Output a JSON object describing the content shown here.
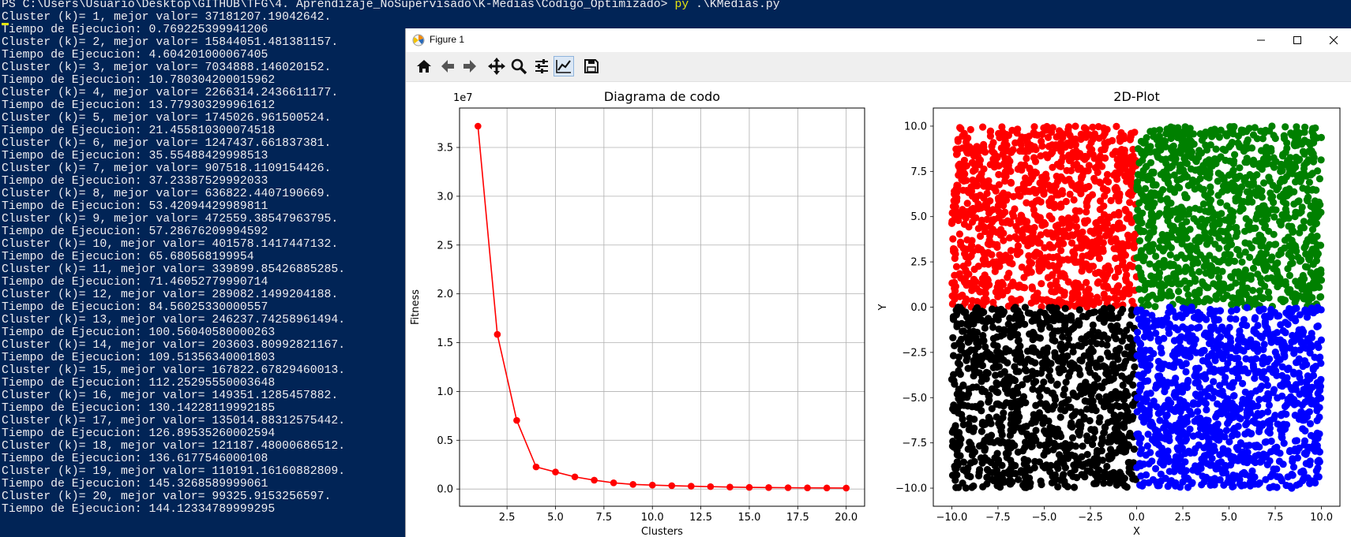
{
  "terminal": {
    "command_prefix": "PS C:\\Users\\Usuario\\Desktop\\GITHUB\\TFG\\4. Aprendizaje_NoSupervisado\\K-Medias\\Codigo_Optimizado> ",
    "command_exec": "py",
    "command_arg": " .\\KMedias.py",
    "lines": [
      "Cluster (k)= 1, mejor valor= 37181207.19042642.",
      "Tiempo de Ejecucion: 0.769225399941206",
      "Cluster (k)= 2, mejor valor= 15844051.481381157.",
      "Tiempo de Ejecucion: 4.604201000067405",
      "Cluster (k)= 3, mejor valor= 7034888.146020152.",
      "Tiempo de Ejecucion: 10.780304200015962",
      "Cluster (k)= 4, mejor valor= 2266314.2436611177.",
      "Tiempo de Ejecucion: 13.779303299961612",
      "Cluster (k)= 5, mejor valor= 1745026.961500524.",
      "Tiempo de Ejecucion: 21.455810300074518",
      "Cluster (k)= 6, mejor valor= 1247437.661837381.",
      "Tiempo de Ejecucion: 35.55488429998513",
      "Cluster (k)= 7, mejor valor= 907518.1109154426.",
      "Tiempo de Ejecucion: 37.23387529992033",
      "Cluster (k)= 8, mejor valor= 636822.4407190669.",
      "Tiempo de Ejecucion: 53.42094429989811",
      "Cluster (k)= 9, mejor valor= 472559.38547963795.",
      "Tiempo de Ejecucion: 57.28676209994592",
      "Cluster (k)= 10, mejor valor= 401578.1417447132.",
      "Tiempo de Ejecucion: 65.680568199954",
      "Cluster (k)= 11, mejor valor= 339899.85426885285.",
      "Tiempo de Ejecucion: 71.46052779990714",
      "Cluster (k)= 12, mejor valor= 289082.1499204188.",
      "Tiempo de Ejecucion: 84.56025330000557",
      "Cluster (k)= 13, mejor valor= 246237.74258961494.",
      "Tiempo de Ejecucion: 100.56040580000263",
      "Cluster (k)= 14, mejor valor= 203603.80992821167.",
      "Tiempo de Ejecucion: 109.51356340001803",
      "Cluster (k)= 15, mejor valor= 167822.67829460013.",
      "Tiempo de Ejecucion: 112.25295550003648",
      "Cluster (k)= 16, mejor valor= 149351.1285457882.",
      "Tiempo de Ejecucion: 130.14228119992185",
      "Cluster (k)= 17, mejor valor= 135014.88312575442.",
      "Tiempo de Ejecucion: 126.89535260002594",
      "Cluster (k)= 18, mejor valor= 121187.48000686512.",
      "Tiempo de Ejecucion: 136.6177546000108",
      "Cluster (k)= 19, mejor valor= 110191.16160882809.",
      "Tiempo de Ejecucion: 145.3268589999061",
      "Cluster (k)= 20, mejor valor= 99325.9153256597.",
      "Tiempo de Ejecucion: 144.12334789999295"
    ]
  },
  "window": {
    "title": "Figure 1"
  },
  "toolbar": {
    "buttons": [
      "home-icon",
      "back-arrow-icon",
      "forward-arrow-icon",
      "pan-icon",
      "zoom-icon",
      "subplots-config-icon",
      "edit-axis-icon",
      "save-icon"
    ],
    "active": "edit-axis-icon"
  },
  "colors": {
    "terminal_bg": "#012456",
    "terminal_text": "#eeedf0",
    "command_highlight": "#e5e510",
    "elbow_line": "#ff0000",
    "cluster_colors": [
      "#ff0000",
      "#008000",
      "#000000",
      "#0000ff"
    ]
  },
  "chart_data": [
    {
      "type": "line",
      "title": "Diagrama de codo",
      "xlabel": "Clusters",
      "ylabel": "Fitness",
      "scale_label": "1e7",
      "x": [
        1,
        2,
        3,
        4,
        5,
        6,
        7,
        8,
        9,
        10,
        11,
        12,
        13,
        14,
        15,
        16,
        17,
        18,
        19,
        20
      ],
      "y": [
        37181207.19042642,
        15844051.481381157,
        7034888.146020152,
        2266314.2436611177,
        1745026.961500524,
        1247437.661837381,
        907518.1109154426,
        636822.4407190669,
        472559.38547963795,
        401578.1417447132,
        339899.85426885285,
        289082.1499204188,
        246237.74258961494,
        203603.80992821167,
        167822.67829460013,
        149351.1285457882,
        135014.88312575442,
        121187.48000686512,
        110191.16160882809,
        99325.9153256597
      ],
      "xlim": [
        0.05,
        20.95
      ],
      "ylim": [
        -1763000,
        39040000
      ],
      "xticks": [
        2.5,
        5.0,
        7.5,
        10.0,
        12.5,
        15.0,
        17.5,
        20.0
      ],
      "xtick_labels": [
        "2.5",
        "5.0",
        "7.5",
        "10.0",
        "12.5",
        "15.0",
        "17.5",
        "20.0"
      ],
      "yticks": [
        0,
        5000000,
        10000000,
        15000000,
        20000000,
        25000000,
        30000000,
        35000000
      ],
      "ytick_labels": [
        "0.0",
        "0.5",
        "1.0",
        "1.5",
        "2.0",
        "2.5",
        "3.0",
        "3.5"
      ],
      "grid": true,
      "marker": "circle",
      "color": "#ff0000"
    },
    {
      "type": "scatter",
      "title": "2D-Plot",
      "xlabel": "X",
      "ylabel": "Y",
      "xlim": [
        -11.0,
        11.0
      ],
      "ylim": [
        -11.0,
        11.0
      ],
      "xticks": [
        -10.0,
        -7.5,
        -5.0,
        -2.5,
        0.0,
        2.5,
        5.0,
        7.5,
        10.0
      ],
      "xtick_labels": [
        "−10.0",
        "−7.5",
        "−5.0",
        "−2.5",
        "0.0",
        "2.5",
        "5.0",
        "7.5",
        "10.0"
      ],
      "yticks": [
        10.0,
        7.5,
        5.0,
        2.5,
        0.0,
        -2.5,
        -5.0,
        -7.5,
        -10.0
      ],
      "ytick_labels": [
        "10.0",
        "7.5",
        "5.0",
        "2.5",
        "0.0",
        "−2.5",
        "−5.0",
        "−7.5",
        "−10.0"
      ],
      "grid": false,
      "clusters": [
        {
          "color": "#ff0000",
          "x_range": [
            -10,
            0
          ],
          "y_range": [
            0,
            10
          ]
        },
        {
          "color": "#008000",
          "x_range": [
            0,
            10
          ],
          "y_range": [
            0,
            10
          ]
        },
        {
          "color": "#000000",
          "x_range": [
            -10,
            0
          ],
          "y_range": [
            -10,
            0
          ]
        },
        {
          "color": "#0000ff",
          "x_range": [
            0,
            10
          ],
          "y_range": [
            -10,
            0
          ]
        }
      ],
      "points_per_cluster": 1100
    }
  ]
}
